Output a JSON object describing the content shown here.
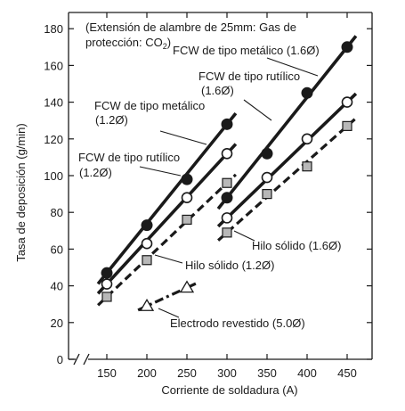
{
  "chart_data": {
    "type": "line",
    "title": "",
    "xlabel": "Corriente de soldadura (A)",
    "ylabel": "Tasa de deposición (g/min)",
    "xlim": [
      100,
      475
    ],
    "ylim": [
      0,
      190
    ],
    "x_ticks": [
      150,
      200,
      250,
      300,
      350,
      400,
      450
    ],
    "y_ticks": [
      0,
      20,
      40,
      60,
      80,
      100,
      120,
      140,
      160,
      180
    ],
    "x_axis_break": true,
    "grid": false,
    "legend": "none",
    "note_line1": "(Extensión de alambre de 25mm: Gas de",
    "note_line2_prefix": "protección: CO",
    "note_line2_sub": "2",
    "note_line2_suffix": ")",
    "series": [
      {
        "name": "FCW de tipo metálico (1.2Ø)",
        "label_lines": [
          "FCW de tipo metálico",
          "(1.2Ø)"
        ],
        "marker": "filled-circle",
        "line": "solid",
        "points": [
          [
            150,
            47
          ],
          [
            200,
            73
          ],
          [
            250,
            98
          ],
          [
            300,
            128
          ]
        ]
      },
      {
        "name": "FCW de tipo rutílico (1.2Ø)",
        "label_lines": [
          "FCW de tipo rutílico",
          "(1.2Ø)"
        ],
        "marker": "open-circle",
        "line": "solid",
        "points": [
          [
            150,
            41
          ],
          [
            200,
            63
          ],
          [
            250,
            88
          ],
          [
            300,
            112
          ]
        ]
      },
      {
        "name": "Hilo sólido (1.2Ø)",
        "label_lines": [
          "Hilo sólido (1.2Ø)"
        ],
        "marker": "square",
        "line": "dashed",
        "points": [
          [
            150,
            34
          ],
          [
            200,
            54
          ],
          [
            250,
            76
          ],
          [
            300,
            96
          ]
        ]
      },
      {
        "name": "FCW de tipo metálico (1.6Ø)",
        "label_lines": [
          "FCW de tipo metálico (1.6Ø)"
        ],
        "marker": "filled-circle",
        "line": "solid",
        "points": [
          [
            300,
            88
          ],
          [
            350,
            112
          ],
          [
            400,
            145
          ],
          [
            450,
            170
          ]
        ]
      },
      {
        "name": "FCW de tipo rutílico (1.6Ø)",
        "label_lines": [
          "FCW de tipo rutílico",
          "(1.6Ø)"
        ],
        "marker": "open-circle",
        "line": "solid",
        "points": [
          [
            300,
            77
          ],
          [
            350,
            99
          ],
          [
            400,
            120
          ],
          [
            450,
            140
          ]
        ]
      },
      {
        "name": "Hilo sólido (1.6Ø)",
        "label_lines": [
          "Hilo sólido (1.6Ø)"
        ],
        "marker": "square",
        "line": "dashed",
        "points": [
          [
            300,
            69
          ],
          [
            350,
            90
          ],
          [
            400,
            105
          ],
          [
            450,
            127
          ]
        ]
      },
      {
        "name": "Electrodo revestido (5.0Ø)",
        "label_lines": [
          "Electrodo revestido (5.0Ø)"
        ],
        "marker": "open-triangle",
        "line": "dash-dot",
        "points": [
          [
            200,
            29
          ],
          [
            250,
            39
          ]
        ]
      }
    ]
  },
  "colors": {
    "line": "#1a1a1a",
    "filled_marker": "#1a1a1a",
    "open_marker_fill": "#ffffff",
    "square_fill": "#b8b8b8"
  }
}
